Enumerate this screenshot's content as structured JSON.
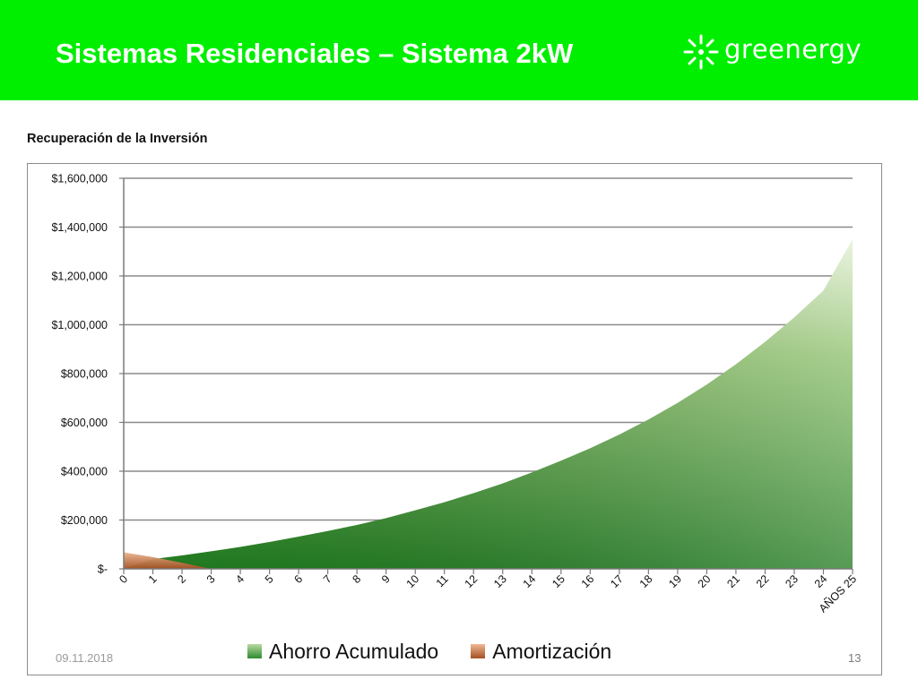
{
  "header": {
    "title": "Sistemas Residenciales – Sistema 2kW",
    "logo_text": "greenergy",
    "background_color": "#00ef00"
  },
  "subtitle": "Recuperación de la Inversión",
  "footer": {
    "date": "09.11.2018",
    "page_number": "13"
  },
  "chart_data": {
    "type": "area",
    "title": "",
    "xlabel": "AÑOS",
    "ylabel": "",
    "x": [
      0,
      1,
      2,
      3,
      4,
      5,
      6,
      7,
      8,
      9,
      10,
      11,
      12,
      13,
      14,
      15,
      16,
      17,
      18,
      19,
      20,
      21,
      22,
      23,
      24,
      25
    ],
    "x_tick_labels": [
      "0",
      "1",
      "2",
      "3",
      "4",
      "5",
      "6",
      "7",
      "8",
      "9",
      "10",
      "11",
      "12",
      "13",
      "14",
      "15",
      "16",
      "17",
      "18",
      "19",
      "20",
      "21",
      "22",
      "23",
      "24",
      "AÑOS 25"
    ],
    "ylim": [
      0,
      1600000
    ],
    "y_ticks": [
      0,
      200000,
      400000,
      600000,
      800000,
      1000000,
      1200000,
      1400000,
      1600000
    ],
    "y_tick_labels": [
      "$-",
      "$200,000",
      "$400,000",
      "$600,000",
      "$800,000",
      "$1,000,000",
      "$1,200,000",
      "$1,400,000",
      "$1,600,000"
    ],
    "grid": true,
    "legend_position": "bottom",
    "series": [
      {
        "name": "Ahorro Acumulado",
        "color": "#2e8b2e",
        "values": [
          0,
          40000,
          55000,
          72000,
          90000,
          110000,
          132000,
          155000,
          180000,
          208000,
          240000,
          273000,
          310000,
          350000,
          395000,
          443000,
          494000,
          550000,
          612000,
          680000,
          755000,
          838000,
          930000,
          1030000,
          1140000,
          1350000
        ]
      },
      {
        "name": "Amortización",
        "color": "#c56a3a",
        "values": [
          68000,
          48000,
          25000,
          0,
          0,
          0,
          0,
          0,
          0,
          0,
          0,
          0,
          0,
          0,
          0,
          0,
          0,
          0,
          0,
          0,
          0,
          0,
          0,
          0,
          0,
          0
        ]
      }
    ]
  }
}
